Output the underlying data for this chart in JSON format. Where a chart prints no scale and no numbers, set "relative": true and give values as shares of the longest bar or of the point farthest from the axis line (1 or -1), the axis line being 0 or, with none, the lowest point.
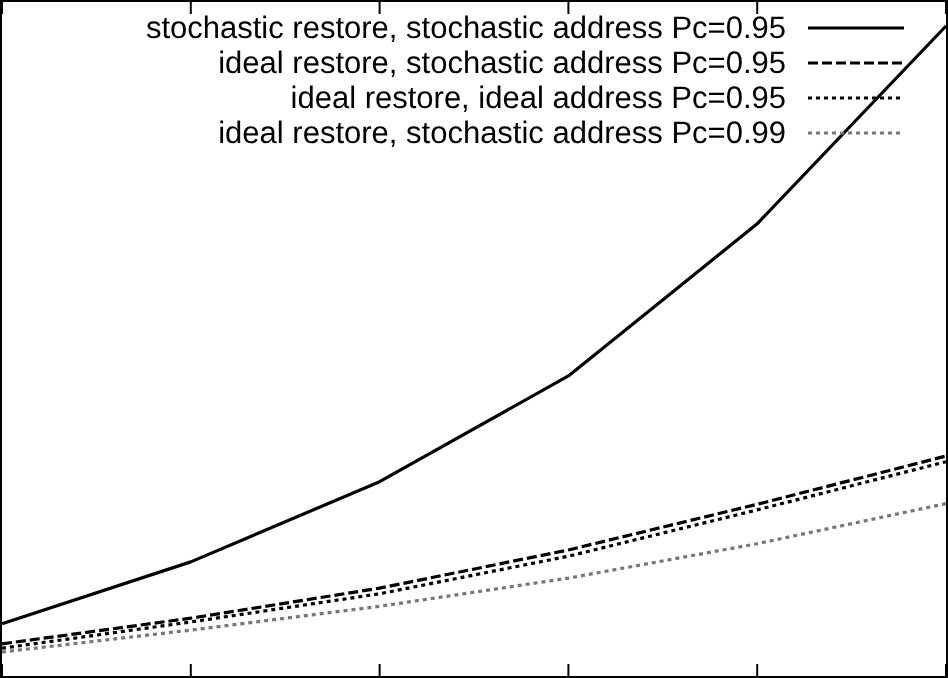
{
  "chart_data": {
    "type": "line",
    "relative": true,
    "categories": [
      null,
      null,
      null,
      null,
      null,
      null
    ],
    "legend": "top right",
    "series": [
      {
        "name": "stochastic restore, stochastic address Pc=0.95",
        "color": "#000000",
        "line_style": "solid",
        "values": [
          0.045,
          0.144,
          0.272,
          0.441,
          0.684,
          1
        ]
      },
      {
        "name": "ideal restore, stochastic address Pc=0.95",
        "color": "#000000",
        "line_style": "dashed",
        "values": [
          0.013,
          0.054,
          0.102,
          0.163,
          0.236,
          0.313
        ]
      },
      {
        "name": "ideal restore, ideal address Pc=0.95",
        "color": "#000000",
        "line_style": "dotted",
        "values": [
          0.006,
          0.048,
          0.093,
          0.153,
          0.227,
          0.304
        ]
      },
      {
        "name": "ideal restore, stochastic address Pc=0.99",
        "color": "#777777",
        "line_style": "dotted",
        "values": [
          0,
          0.035,
          0.073,
          0.118,
          0.173,
          0.237
        ]
      }
    ]
  }
}
